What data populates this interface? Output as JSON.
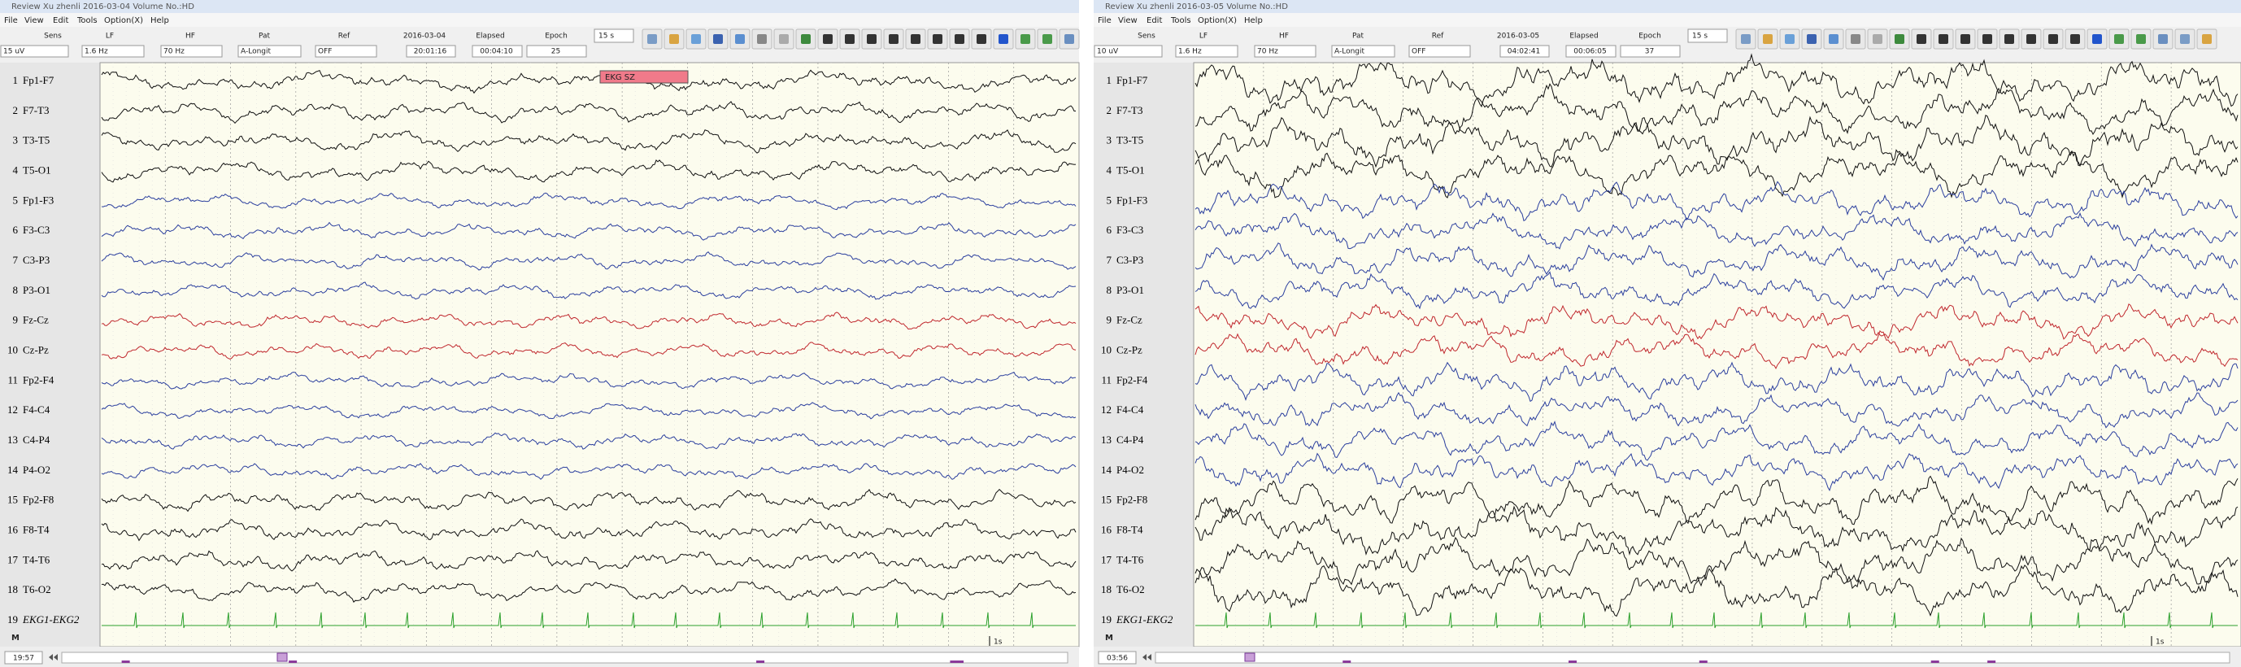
{
  "windows": [
    {
      "title_bar": "Review  Xu zhenli    2016-03-04    Volume No.:HD",
      "menu": [
        "File",
        "View",
        "Edit",
        "Tools",
        "Option(X)",
        "Help"
      ],
      "toolbar": {
        "labels": [
          "Sens",
          "LF",
          "HF",
          "Pat",
          "Ref",
          "2016-03-04",
          "Elapsed",
          "Epoch"
        ],
        "values": [
          "15 uV",
          "1.6 Hz",
          "70 Hz",
          "A-Longit",
          "OFF",
          "20:01:16",
          "00:04:10",
          "25"
        ],
        "page_length": "15 s"
      },
      "channels": [
        {
          "number": 1,
          "label": "Fp1-F7"
        },
        {
          "number": 2,
          "label": "F7-T3"
        },
        {
          "number": 3,
          "label": "T3-T5"
        },
        {
          "number": 4,
          "label": "T5-O1"
        },
        {
          "number": 5,
          "label": "Fp1-F3"
        },
        {
          "number": 6,
          "label": "F3-C3"
        },
        {
          "number": 7,
          "label": "C3-P3"
        },
        {
          "number": 8,
          "label": "P3-O1"
        },
        {
          "number": 9,
          "label": "Fz-Cz"
        },
        {
          "number": 10,
          "label": "Cz-Pz"
        },
        {
          "number": 11,
          "label": "Fp2-F4"
        },
        {
          "number": 12,
          "label": "F4-C4"
        },
        {
          "number": 13,
          "label": "C4-P4"
        },
        {
          "number": 14,
          "label": "P4-O2"
        },
        {
          "number": 15,
          "label": "Fp2-F8"
        },
        {
          "number": 16,
          "label": "F8-T4"
        },
        {
          "number": 17,
          "label": "T4-T6"
        },
        {
          "number": 18,
          "label": "T6-O2"
        },
        {
          "number": 19,
          "label": "EKG1-EKG2"
        }
      ],
      "annotation": "EKG SZ",
      "scale_label": "1s",
      "marker": "M",
      "status_time": "19:57"
    },
    {
      "title_bar": "Review  Xu zhenli    2016-03-05    Volume No.:HD",
      "menu": [
        "File",
        "View",
        "Edit",
        "Tools",
        "Option(X)",
        "Help"
      ],
      "toolbar": {
        "labels": [
          "Sens",
          "LF",
          "HF",
          "Pat",
          "Ref",
          "2016-03-05",
          "Elapsed",
          "Epoch"
        ],
        "values": [
          "10 uV",
          "1.6 Hz",
          "70 Hz",
          "A-Longit",
          "OFF",
          "04:02:41",
          "00:06:05",
          "37"
        ],
        "page_length": "15 s"
      },
      "channels": [
        {
          "number": 1,
          "label": "Fp1-F7"
        },
        {
          "number": 2,
          "label": "F7-T3"
        },
        {
          "number": 3,
          "label": "T3-T5"
        },
        {
          "number": 4,
          "label": "T5-O1"
        },
        {
          "number": 5,
          "label": "Fp1-F3"
        },
        {
          "number": 6,
          "label": "F3-C3"
        },
        {
          "number": 7,
          "label": "C3-P3"
        },
        {
          "number": 8,
          "label": "P3-O1"
        },
        {
          "number": 9,
          "label": "Fz-Cz"
        },
        {
          "number": 10,
          "label": "Cz-Pz"
        },
        {
          "number": 11,
          "label": "Fp2-F4"
        },
        {
          "number": 12,
          "label": "F4-C4"
        },
        {
          "number": 13,
          "label": "C4-P4"
        },
        {
          "number": 14,
          "label": "P4-O2"
        },
        {
          "number": 15,
          "label": "Fp2-F8"
        },
        {
          "number": 16,
          "label": "F8-T4"
        },
        {
          "number": 17,
          "label": "T4-T6"
        },
        {
          "number": 18,
          "label": "T6-O2"
        },
        {
          "number": 19,
          "label": "EKG1-EKG2"
        }
      ],
      "scale_label": "1s",
      "marker": "M",
      "status_time": "03:56"
    }
  ]
}
